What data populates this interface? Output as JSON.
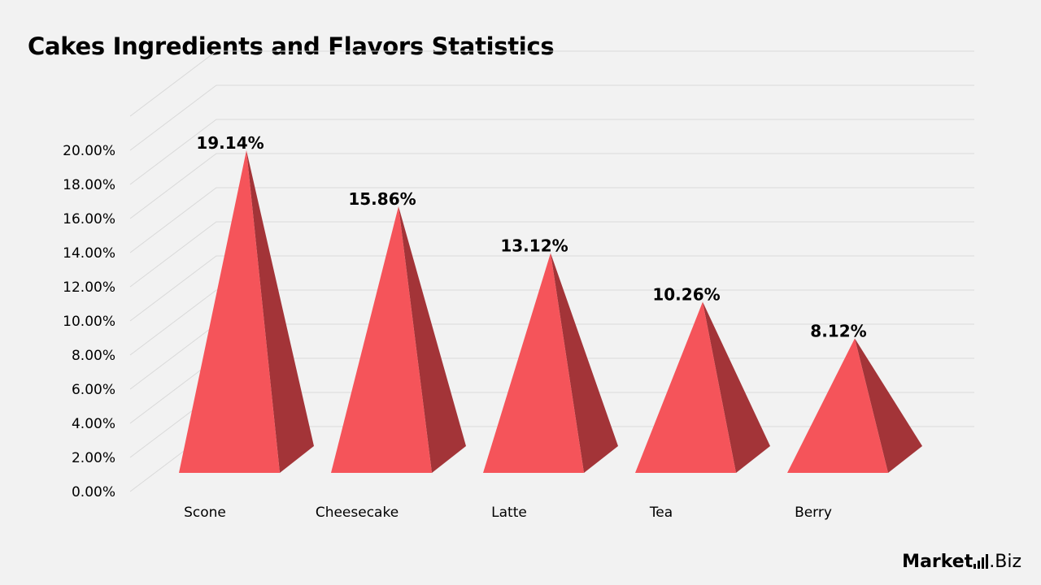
{
  "title": "Cakes Ingredients and Flavors Statistics",
  "brand": {
    "part1": "Market",
    "part2": ".Biz"
  },
  "colors": {
    "front": "#f5545a",
    "side": "#a33438",
    "grid": "#d9d9d9"
  },
  "chart_data": {
    "type": "bar",
    "style": "3d-pyramid",
    "categories": [
      "Scone",
      "Cheesecake",
      "Latte",
      "Tea",
      "Berry"
    ],
    "values": [
      19.14,
      15.86,
      13.12,
      10.26,
      8.12
    ],
    "value_labels": [
      "19.14%",
      "15.86%",
      "13.12%",
      "10.26%",
      "8.12%"
    ],
    "yticks": [
      "0.00%",
      "2.00%",
      "4.00%",
      "6.00%",
      "8.00%",
      "10.00%",
      "12.00%",
      "14.00%",
      "16.00%",
      "18.00%",
      "20.00%"
    ],
    "ylim": [
      0,
      20
    ],
    "grid": true,
    "legend": "none",
    "xlabel": "",
    "ylabel": ""
  }
}
